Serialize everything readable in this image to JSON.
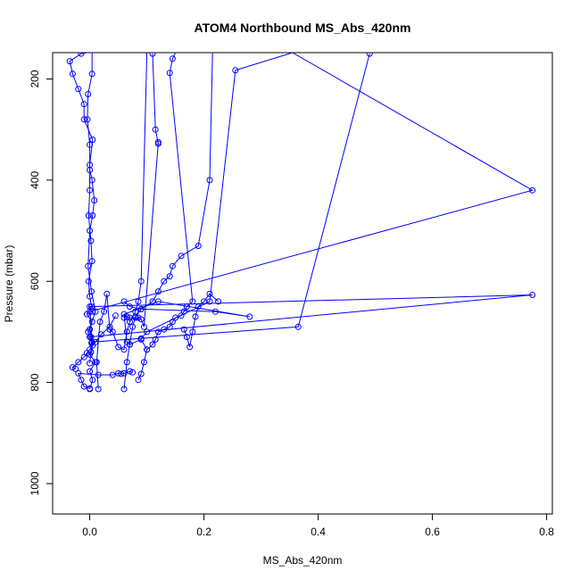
{
  "chart_data": {
    "type": "scatter",
    "title": "ATOM4 Northbound MS_Abs_420nm",
    "xlabel": "MS_Abs_420nm",
    "ylabel": "Pressure (mbar)",
    "xlim": [
      -0.065,
      0.81
    ],
    "ylim": [
      1060,
      148
    ],
    "x_ticks": [
      0.0,
      0.2,
      0.4,
      0.6,
      0.8
    ],
    "x_tick_labels": [
      "0.0",
      "0.2",
      "0.4",
      "0.6",
      "0.8"
    ],
    "y_ticks": [
      200,
      400,
      600,
      800,
      1000
    ],
    "y_tick_labels": [
      "200",
      "400",
      "600",
      "800",
      "1000"
    ],
    "grid": false,
    "color": "#0000ff",
    "series": [
      {
        "x": [
          0.0,
          0.005,
          0.0,
          0.01,
          0.0,
          0.005,
          0.002,
          0.0,
          0.004,
          -0.005,
          0.003,
          0.0,
          -0.002,
          0.004,
          0.002,
          -0.002,
          0.0,
          0.0,
          0.005,
          -0.01,
          -0.01,
          -0.02,
          -0.03,
          -0.035,
          -0.015,
          -0.005,
          0.005
        ],
        "y": [
          813,
          795,
          778,
          760,
          745,
          727,
          710,
          695,
          680,
          665,
          650,
          630,
          600,
          560,
          520,
          470,
          420,
          370,
          320,
          280,
          250,
          220,
          190,
          165,
          150,
          148,
          148
        ]
      },
      {
        "x": [
          0.0,
          0.002,
          0.003,
          -0.003,
          0.01,
          0.003,
          -0.003,
          0.0,
          0.005,
          0.008,
          0.004,
          0.0,
          0.0,
          -0.004,
          -0.003,
          0.004,
          0.004
        ],
        "y": [
          762,
          740,
          722,
          700,
          660,
          620,
          570,
          500,
          470,
          440,
          400,
          380,
          330,
          280,
          230,
          190,
          148
        ]
      },
      {
        "x": [
          0.015,
          0.012,
          0.018,
          0.025,
          0.03,
          0.035,
          0.04,
          0.05,
          0.06,
          0.065,
          0.07,
          0.08,
          0.085,
          0.09,
          0.1
        ],
        "y": [
          813,
          760,
          680,
          660,
          625,
          695,
          700,
          730,
          735,
          700,
          680,
          660,
          640,
          600,
          148
        ]
      },
      {
        "x": [
          0.06,
          0.065,
          0.07,
          0.075,
          0.08,
          0.09,
          0.11,
          0.12,
          0.13,
          0.14,
          0.145,
          0.16,
          0.19,
          0.21,
          0.215
        ],
        "y": [
          813,
          760,
          725,
          690,
          670,
          655,
          640,
          620,
          600,
          590,
          570,
          550,
          530,
          400,
          148
        ]
      },
      {
        "x": [
          0.085,
          0.09,
          0.095,
          0.1,
          0.11,
          0.115,
          0.12,
          0.13,
          0.14,
          0.145,
          0.15,
          0.16,
          0.165,
          0.17,
          0.18,
          0.14,
          0.145,
          0.15,
          0.145
        ],
        "y": [
          795,
          783,
          760,
          735,
          725,
          715,
          700,
          695,
          690,
          680,
          672,
          668,
          660,
          650,
          640,
          188,
          160,
          148,
          148
        ]
      },
      {
        "x": [
          0.09,
          0.1,
          0.21,
          0.255,
          0.355,
          0.775,
          0.0,
          0.005
        ],
        "y": [
          713,
          700,
          640,
          183,
          148,
          420,
          660,
          660
        ]
      },
      {
        "x": [
          0.0,
          0.775,
          0.0,
          0.004,
          0.365,
          0.49
        ],
        "y": [
          710,
          627,
          650,
          720,
          690,
          150
        ]
      },
      {
        "x": [
          0.06,
          0.07,
          0.09,
          0.22,
          0.28,
          0.12,
          0.06,
          0.065,
          0.07,
          0.09,
          0.1
        ],
        "y": [
          640,
          650,
          655,
          660,
          670,
          640,
          665,
          720,
          725,
          715,
          735
        ]
      },
      {
        "x": [
          0.06,
          0.065,
          0.07,
          0.08,
          0.085,
          0.09,
          0.095,
          0.12,
          0.12,
          0.115,
          0.11
        ],
        "y": [
          672,
          670,
          672,
          672,
          672,
          675,
          690,
          325,
          328,
          300,
          150
        ]
      },
      {
        "x": [
          0.0,
          -0.01,
          -0.015,
          -0.02,
          0.015,
          0.04,
          0.05,
          0.055,
          0.06,
          0.07,
          0.075
        ],
        "y": [
          812,
          808,
          795,
          782,
          785,
          785,
          782,
          783,
          782,
          778,
          780
        ]
      },
      {
        "x": [
          -0.025,
          -0.03,
          -0.02,
          -0.01,
          -0.005,
          0.0,
          0.01,
          0.02,
          0.035,
          0.045
        ],
        "y": [
          773,
          770,
          760,
          750,
          742,
          735,
          720,
          705,
          690,
          668
        ]
      },
      {
        "x": [
          0.165,
          0.17,
          0.175,
          0.18,
          0.185,
          0.19,
          0.2,
          0.21,
          0.225
        ],
        "y": [
          695,
          710,
          730,
          700,
          670,
          650,
          640,
          625,
          640
        ]
      }
    ]
  }
}
